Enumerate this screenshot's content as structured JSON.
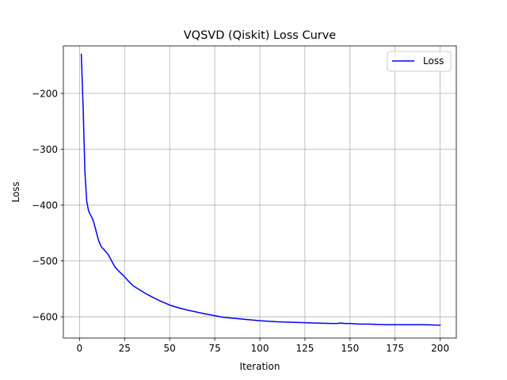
{
  "colors": {
    "series": "#0000ff",
    "grid": "#b0b0b0",
    "axes": "#000000",
    "legend_border": "#cccccc"
  },
  "chart_data": {
    "type": "line",
    "title": "VQSVD (Qiskit) Loss Curve",
    "xlabel": "Iteration",
    "ylabel": "Loss",
    "xlim": [
      -8.95,
      208.95
    ],
    "ylim": [
      -638,
      -115
    ],
    "xticks": [
      0,
      25,
      50,
      75,
      100,
      125,
      150,
      175,
      200
    ],
    "yticks": [
      -600,
      -500,
      -400,
      -300,
      -200
    ],
    "xtick_labels": [
      "0",
      "25",
      "50",
      "75",
      "100",
      "125",
      "150",
      "175",
      "200"
    ],
    "ytick_labels": [
      "−600",
      "−500",
      "−400",
      "−300",
      "−200"
    ],
    "grid": true,
    "legend": {
      "position": "top-right",
      "entries": [
        "Loss"
      ]
    },
    "series": [
      {
        "name": "Loss",
        "color": "#0000ff",
        "x": [
          1,
          2,
          3,
          4,
          5,
          6,
          7,
          8,
          9,
          10,
          11,
          12,
          13,
          14,
          15,
          16,
          17,
          18,
          19,
          20,
          22,
          24,
          26,
          28,
          30,
          33,
          36,
          40,
          45,
          50,
          55,
          60,
          70,
          80,
          90,
          100,
          110,
          120,
          130,
          140,
          143,
          145,
          147,
          150,
          155,
          160,
          170,
          180,
          190,
          200
        ],
        "y": [
          -130,
          -225,
          -340,
          -393,
          -410,
          -417,
          -423,
          -432,
          -444,
          -457,
          -467,
          -474,
          -478,
          -481,
          -485,
          -489,
          -495,
          -501,
          -507,
          -512,
          -519,
          -525,
          -532,
          -539,
          -545,
          -551,
          -557,
          -564,
          -572,
          -579,
          -584,
          -588,
          -595,
          -601,
          -604,
          -607,
          -609,
          -610,
          -611,
          -612,
          -612,
          -611,
          -612,
          -612,
          -613,
          -613,
          -614,
          -614,
          -614,
          -615
        ]
      }
    ]
  }
}
